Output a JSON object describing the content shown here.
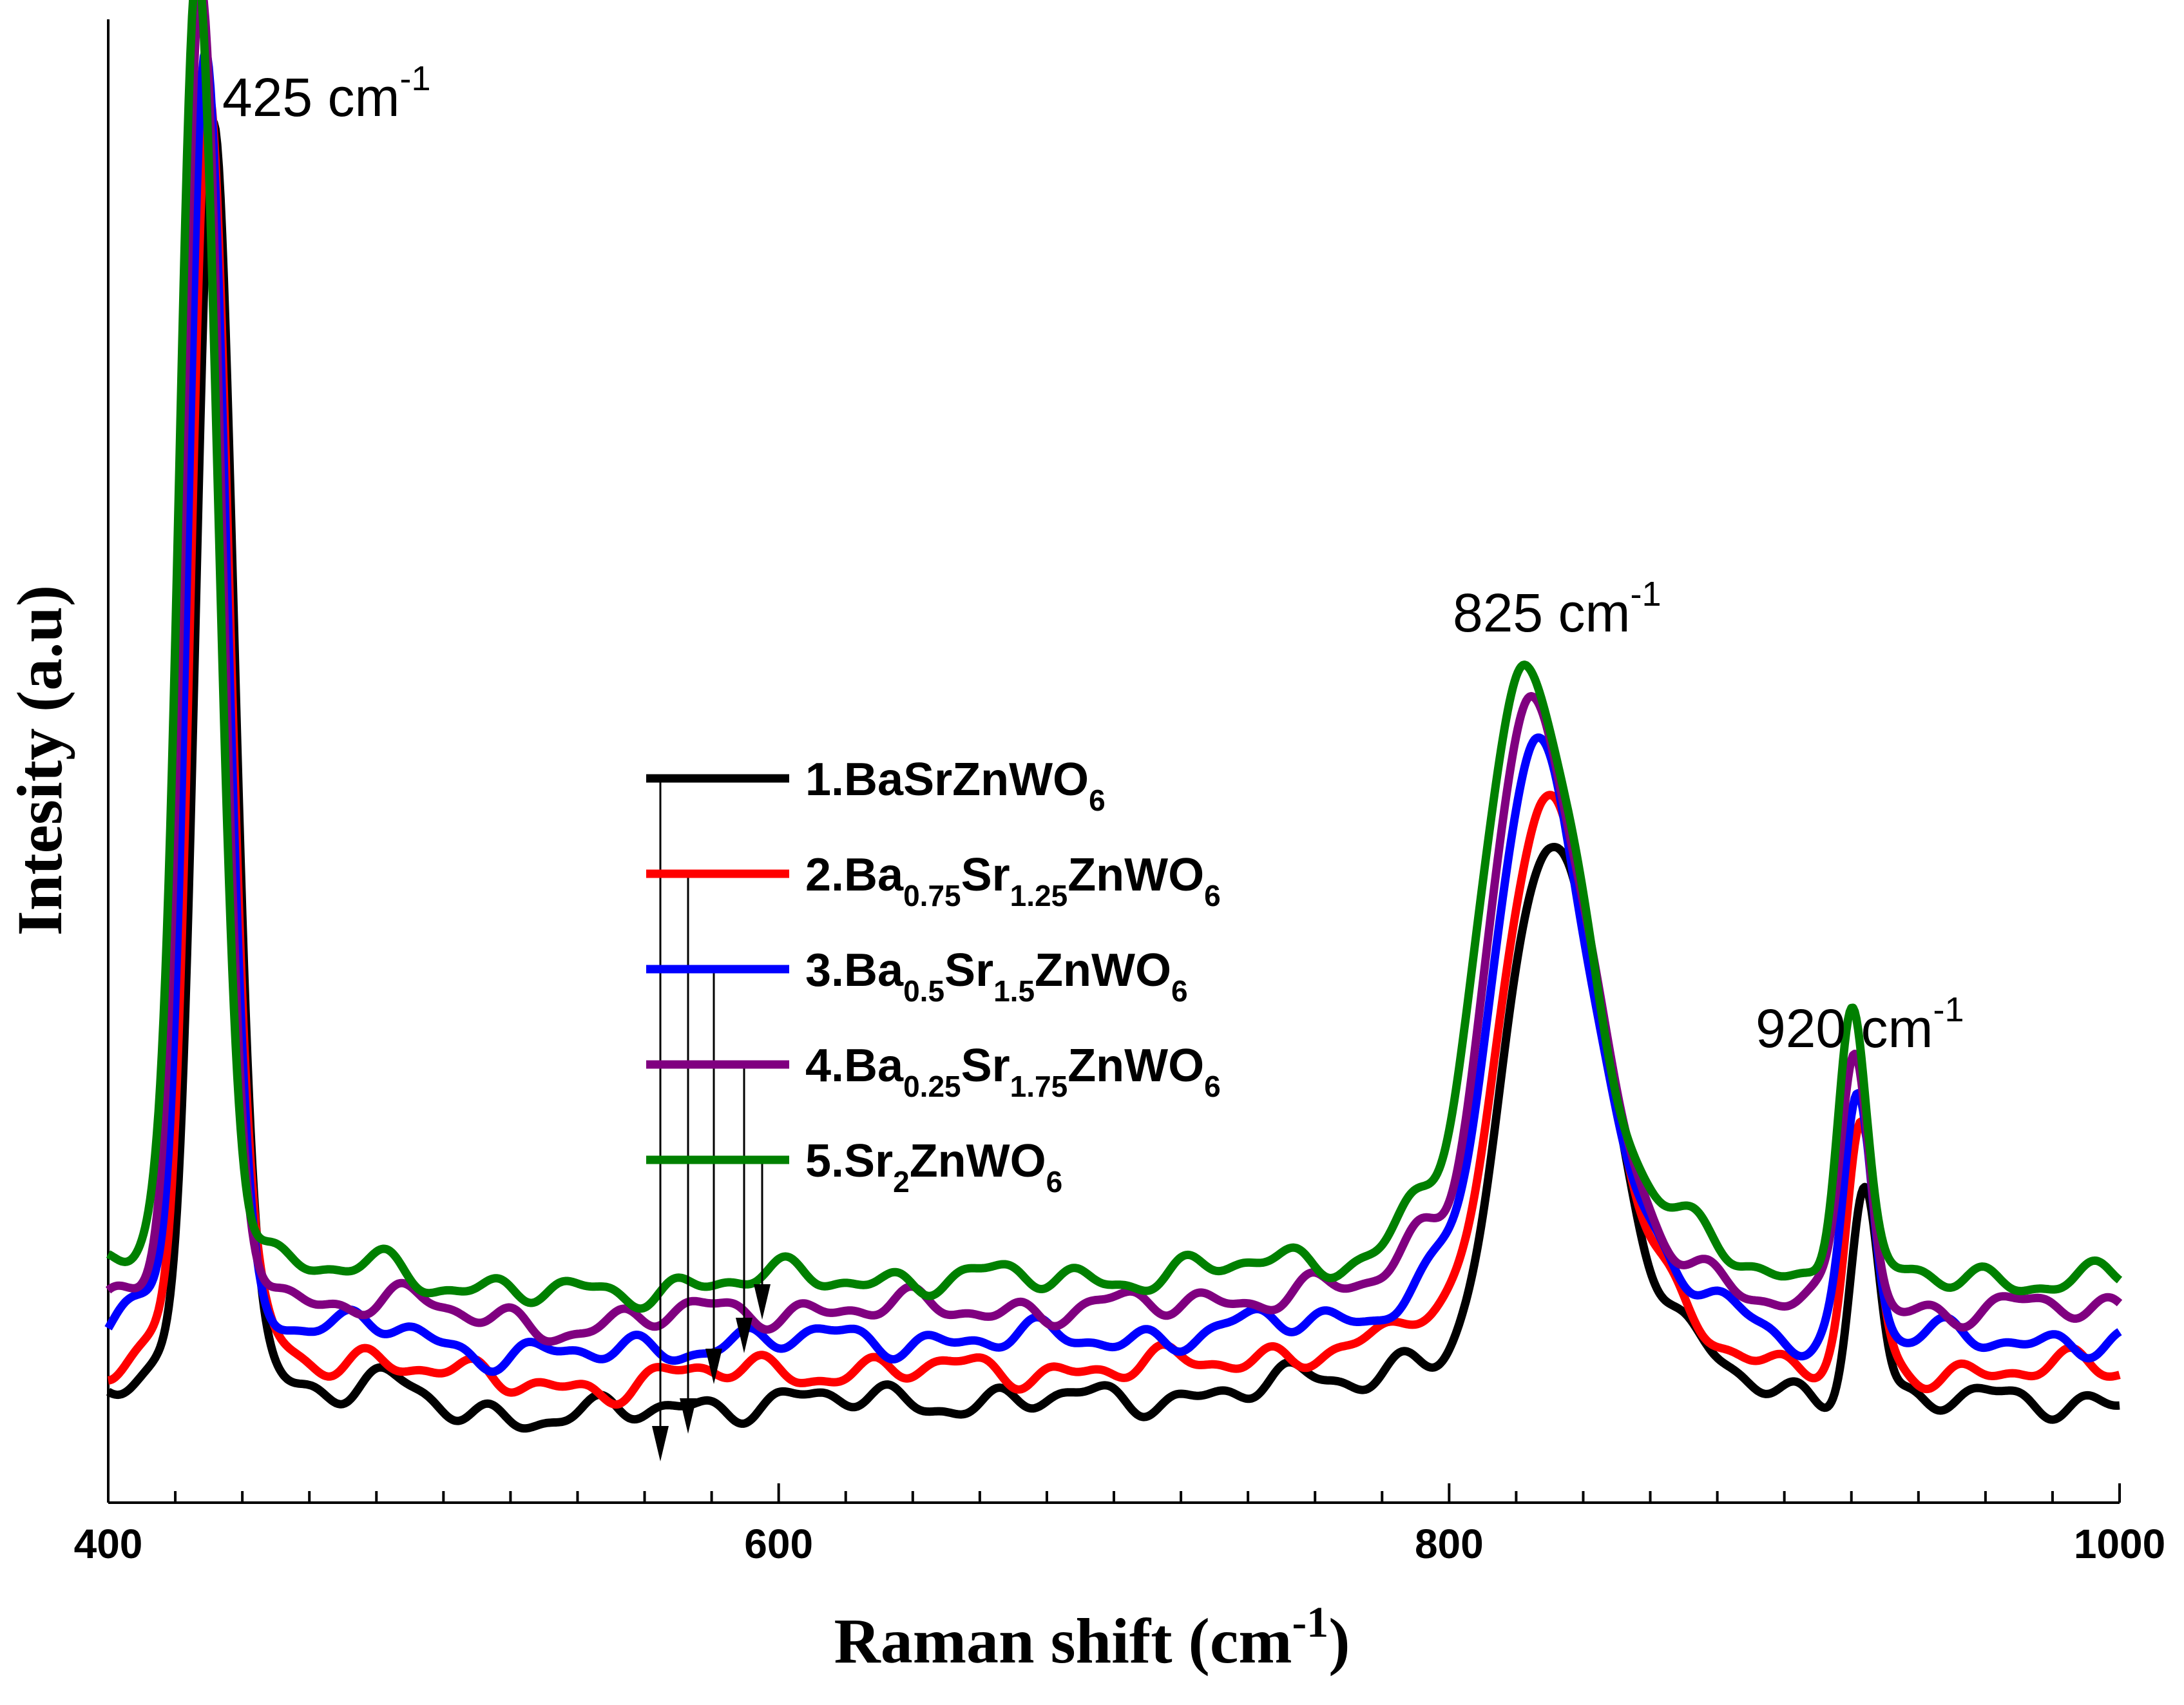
{
  "chart_data": {
    "type": "line",
    "title": "",
    "xlabel": "Raman shift (cm",
    "xlabel_sup": "-1",
    "xlabel_close": ")",
    "ylabel": "Intesity (a.u)",
    "xlim": [
      400,
      1000
    ],
    "ylim": [
      0,
      1
    ],
    "x_ticks": [
      400,
      600,
      800,
      1000
    ],
    "x_tick_labels": [
      "400",
      "600",
      "800",
      "1000"
    ],
    "annotations": [
      {
        "text": "425 cm",
        "sup": "-1",
        "x": 425
      },
      {
        "text": "825 cm",
        "sup": "-1",
        "x": 825
      },
      {
        "text": "920 cm",
        "sup": "-1",
        "x": 920
      }
    ],
    "legend_position": "center",
    "series": [
      {
        "name": "1.BaSrZnWO6",
        "color": "#000000",
        "baseline": 0.04,
        "peak1": {
          "center": 431.5,
          "height": 0.86
        },
        "peak2": {
          "center": 830,
          "height": 0.4
        },
        "peak3": {
          "center": 924,
          "height": 0.16
        },
        "shoulder_height": 0.02,
        "legend_parts": [
          {
            "t": "1.BaSrZnWO"
          },
          {
            "s": "6"
          }
        ]
      },
      {
        "name": "2.Ba0.75Sr1.25ZnWO6",
        "color": "#ff0000",
        "baseline": 0.062,
        "peak1": {
          "center": 430,
          "height": 0.87
        },
        "peak2": {
          "center": 828,
          "height": 0.41
        },
        "peak3": {
          "center": 923,
          "height": 0.17
        },
        "shoulder_height": 0.022,
        "legend_parts": [
          {
            "t": "2.Ba"
          },
          {
            "s": "0.75"
          },
          {
            "t": "Sr"
          },
          {
            "s": "1.25"
          },
          {
            "t": "ZnWO"
          },
          {
            "s": "6"
          }
        ]
      },
      {
        "name": "3.Ba0.5Sr1.5ZnWO6",
        "color": "#0000ff",
        "baseline": 0.084,
        "peak1": {
          "center": 429,
          "height": 0.88
        },
        "peak2": {
          "center": 826,
          "height": 0.42
        },
        "peak3": {
          "center": 922,
          "height": 0.18
        },
        "shoulder_height": 0.025,
        "legend_parts": [
          {
            "t": "3.Ba"
          },
          {
            "s": "0.5"
          },
          {
            "t": "Sr"
          },
          {
            "s": "1.5"
          },
          {
            "t": "ZnWO"
          },
          {
            "s": "6"
          }
        ]
      },
      {
        "name": "4.Ba0.25Sr1.75ZnWO6",
        "color": "#800080",
        "baseline": 0.106,
        "peak1": {
          "center": 427.5,
          "height": 0.89
        },
        "peak2": {
          "center": 824.5,
          "height": 0.43
        },
        "peak3": {
          "center": 921,
          "height": 0.19
        },
        "shoulder_height": 0.027,
        "legend_parts": [
          {
            "t": "4.Ba"
          },
          {
            "s": "0.25"
          },
          {
            "t": "Sr"
          },
          {
            "s": "1.75"
          },
          {
            "t": "ZnWO"
          },
          {
            "s": "6"
          }
        ]
      },
      {
        "name": "5.Sr2ZnWO6",
        "color": "#008000",
        "baseline": 0.128,
        "peak1": {
          "center": 426.5,
          "height": 0.89
        },
        "peak2": {
          "center": 823,
          "height": 0.44
        },
        "peak3": {
          "center": 920,
          "height": 0.2
        },
        "shoulder_height": 0.03,
        "legend_parts": [
          {
            "t": "5.Sr"
          },
          {
            "s": "2"
          },
          {
            "t": "ZnWO"
          },
          {
            "s": "6"
          }
        ]
      }
    ]
  }
}
